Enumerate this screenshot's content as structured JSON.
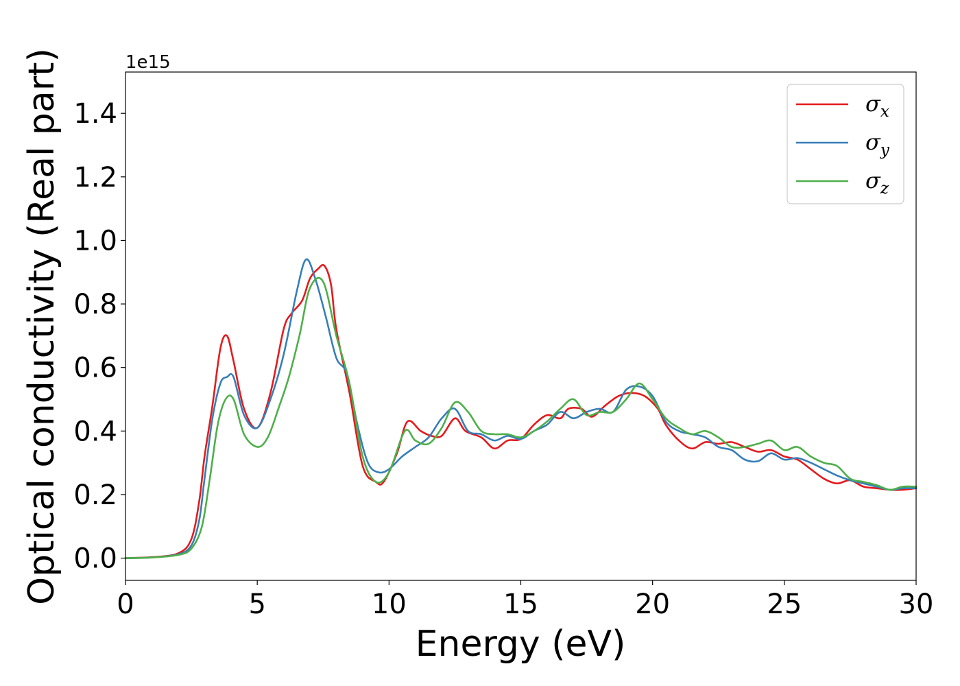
{
  "chart_data": {
    "type": "line",
    "xlabel": "Energy (eV)",
    "ylabel": "Optical conductivity (Real part)",
    "y_offset_label": "1e15",
    "xlim": [
      0,
      30
    ],
    "ylim": [
      -0.07,
      1.53
    ],
    "x_ticks": [
      0,
      5,
      10,
      15,
      20,
      25,
      30
    ],
    "x_tick_labels": [
      "0",
      "5",
      "10",
      "15",
      "20",
      "25",
      "30"
    ],
    "y_ticks": [
      0.0,
      0.2,
      0.4,
      0.6,
      0.8,
      1.0,
      1.2,
      1.4
    ],
    "y_tick_labels": [
      "0.0",
      "0.2",
      "0.4",
      "0.6",
      "0.8",
      "1.0",
      "1.2",
      "1.4"
    ],
    "grid": false,
    "legend_position": "top-right",
    "series": [
      {
        "name": "σ",
        "subscript": "x",
        "color": "#e41a1c",
        "x": [
          0,
          1,
          2,
          2.5,
          2.8,
          3.0,
          3.3,
          3.6,
          3.85,
          4.1,
          4.5,
          5.0,
          5.5,
          6.0,
          6.3,
          6.7,
          7.0,
          7.3,
          7.55,
          7.8,
          8.0,
          8.5,
          9.0,
          9.5,
          9.8,
          10.3,
          10.7,
          11.2,
          11.6,
          12.0,
          12.5,
          12.9,
          13.5,
          14.0,
          14.5,
          15.0,
          15.5,
          16.0,
          16.5,
          16.8,
          17.3,
          17.7,
          18.2,
          18.7,
          19.2,
          19.7,
          20.2,
          20.5,
          21.0,
          21.5,
          22.0,
          22.5,
          23.0,
          23.5,
          24.0,
          24.5,
          25.0,
          25.5,
          26.0,
          26.5,
          27.0,
          27.5,
          28.0,
          28.5,
          29.0,
          29.5,
          30.0
        ],
        "y": [
          0.0,
          0.003,
          0.015,
          0.06,
          0.18,
          0.32,
          0.48,
          0.66,
          0.7,
          0.62,
          0.47,
          0.41,
          0.52,
          0.72,
          0.77,
          0.81,
          0.88,
          0.91,
          0.92,
          0.86,
          0.72,
          0.52,
          0.29,
          0.24,
          0.24,
          0.33,
          0.43,
          0.4,
          0.385,
          0.385,
          0.44,
          0.4,
          0.38,
          0.345,
          0.37,
          0.375,
          0.42,
          0.45,
          0.44,
          0.47,
          0.47,
          0.445,
          0.48,
          0.51,
          0.52,
          0.51,
          0.47,
          0.42,
          0.37,
          0.345,
          0.365,
          0.36,
          0.365,
          0.35,
          0.335,
          0.34,
          0.32,
          0.31,
          0.28,
          0.25,
          0.235,
          0.245,
          0.225,
          0.22,
          0.215,
          0.215,
          0.22
        ]
      },
      {
        "name": "σ",
        "subscript": "y",
        "color": "#377eb8",
        "x": [
          0,
          1,
          2,
          2.5,
          2.8,
          3.0,
          3.3,
          3.6,
          3.85,
          4.1,
          4.5,
          5.0,
          5.5,
          6.0,
          6.5,
          6.85,
          7.2,
          7.6,
          8.0,
          8.4,
          8.8,
          9.2,
          9.6,
          10.0,
          10.5,
          11.0,
          11.5,
          12.0,
          12.5,
          13.0,
          13.5,
          14.0,
          14.5,
          15.0,
          15.5,
          16.0,
          16.5,
          17.0,
          17.5,
          18.0,
          18.5,
          19.0,
          19.5,
          20.0,
          20.5,
          21.0,
          21.5,
          22.0,
          22.5,
          23.0,
          23.5,
          24.0,
          24.5,
          25.0,
          25.5,
          26.0,
          26.5,
          27.0,
          27.5,
          28.0,
          28.5,
          29.0,
          29.5,
          30.0
        ],
        "y": [
          0.0,
          0.002,
          0.012,
          0.04,
          0.12,
          0.25,
          0.44,
          0.55,
          0.57,
          0.57,
          0.45,
          0.41,
          0.5,
          0.64,
          0.84,
          0.94,
          0.88,
          0.76,
          0.63,
          0.58,
          0.42,
          0.3,
          0.27,
          0.28,
          0.32,
          0.35,
          0.38,
          0.44,
          0.47,
          0.4,
          0.39,
          0.37,
          0.385,
          0.375,
          0.4,
          0.42,
          0.46,
          0.44,
          0.46,
          0.47,
          0.46,
          0.53,
          0.54,
          0.51,
          0.43,
          0.4,
          0.39,
          0.38,
          0.35,
          0.34,
          0.31,
          0.305,
          0.33,
          0.31,
          0.315,
          0.3,
          0.28,
          0.26,
          0.245,
          0.235,
          0.225,
          0.215,
          0.22,
          0.22
        ]
      },
      {
        "name": "σ",
        "subscript": "z",
        "color": "#4daf4a",
        "x": [
          0,
          1,
          2,
          2.5,
          2.9,
          3.2,
          3.5,
          3.8,
          4.1,
          4.5,
          5.0,
          5.4,
          5.8,
          6.2,
          6.6,
          7.0,
          7.5,
          8.0,
          8.5,
          9.0,
          9.5,
          10.0,
          10.6,
          11.0,
          11.5,
          12.0,
          12.5,
          13.0,
          13.5,
          14.0,
          14.5,
          15.0,
          15.5,
          16.0,
          16.5,
          17.0,
          17.5,
          18.0,
          18.5,
          19.0,
          19.5,
          20.0,
          20.5,
          21.0,
          21.5,
          22.0,
          22.5,
          23.0,
          23.5,
          24.0,
          24.5,
          25.0,
          25.5,
          26.0,
          26.5,
          27.0,
          27.5,
          28.0,
          28.5,
          29.0,
          29.5,
          30.0
        ],
        "y": [
          0.0,
          0.002,
          0.01,
          0.03,
          0.1,
          0.25,
          0.42,
          0.5,
          0.5,
          0.39,
          0.35,
          0.38,
          0.47,
          0.57,
          0.7,
          0.85,
          0.87,
          0.7,
          0.55,
          0.32,
          0.24,
          0.27,
          0.4,
          0.37,
          0.36,
          0.41,
          0.49,
          0.46,
          0.4,
          0.39,
          0.39,
          0.38,
          0.4,
          0.43,
          0.47,
          0.5,
          0.45,
          0.46,
          0.46,
          0.5,
          0.55,
          0.5,
          0.44,
          0.41,
          0.39,
          0.4,
          0.38,
          0.35,
          0.35,
          0.36,
          0.37,
          0.34,
          0.35,
          0.32,
          0.3,
          0.29,
          0.25,
          0.24,
          0.23,
          0.215,
          0.225,
          0.225
        ]
      }
    ]
  }
}
